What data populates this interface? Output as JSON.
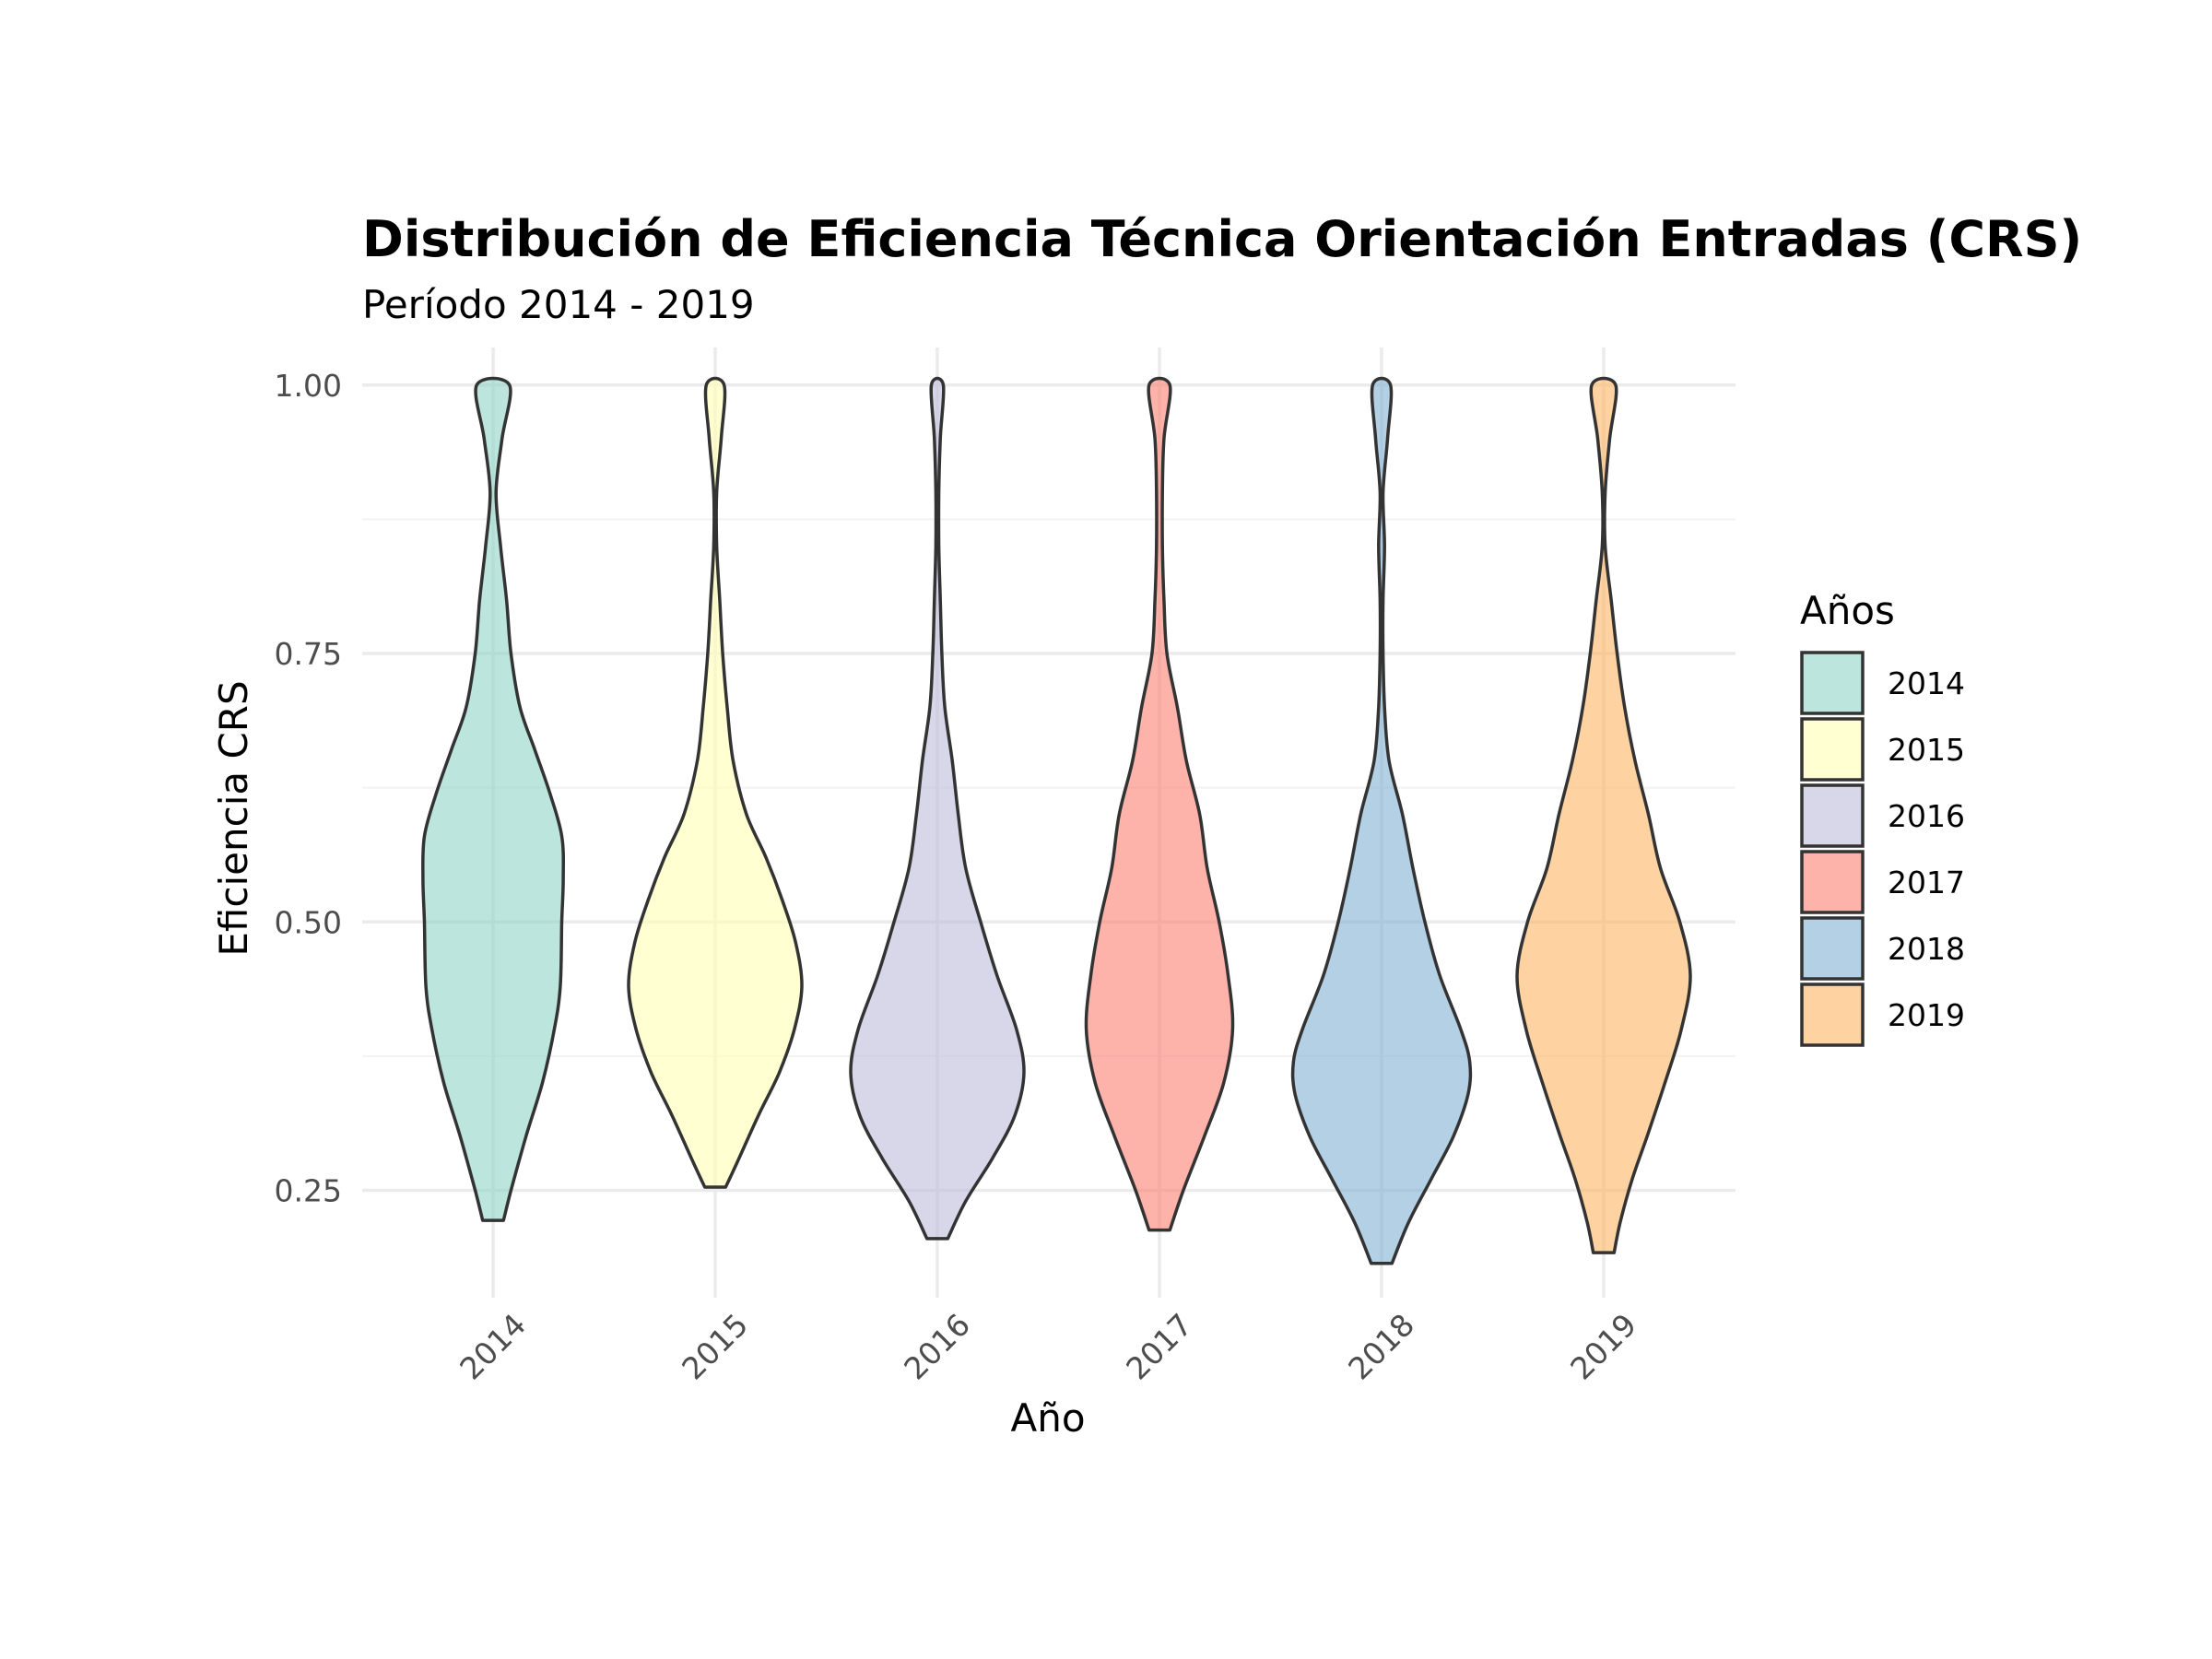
{
  "chart_data": {
    "type": "violin",
    "title": "Distribución de Eficiencia Técnica Orientación Entradas (CRS)",
    "subtitle": "Período 2014 - 2019",
    "xlabel": "Año",
    "ylabel": "Eficiencia CRS",
    "ylim": [
      0.15,
      1.035
    ],
    "yticks": [
      "0.25",
      "0.50",
      "0.75",
      "1.00"
    ],
    "ytick_values": [
      0.25,
      0.5,
      0.75,
      1.0
    ],
    "categories": [
      "2014",
      "2015",
      "2016",
      "2017",
      "2018",
      "2019"
    ],
    "legend": {
      "title": "Años",
      "position": "right"
    },
    "grid": true,
    "series": [
      {
        "name": "2014",
        "color": "#8DD3C7",
        "min": 0.222,
        "max": 1.0,
        "profile": [
          [
            0.222,
            0.07
          ],
          [
            0.25,
            0.12
          ],
          [
            0.3,
            0.22
          ],
          [
            0.35,
            0.33
          ],
          [
            0.4,
            0.41
          ],
          [
            0.44,
            0.45
          ],
          [
            0.5,
            0.46
          ],
          [
            0.54,
            0.47
          ],
          [
            0.58,
            0.46
          ],
          [
            0.62,
            0.38
          ],
          [
            0.66,
            0.28
          ],
          [
            0.7,
            0.18
          ],
          [
            0.75,
            0.12
          ],
          [
            0.8,
            0.09
          ],
          [
            0.85,
            0.05
          ],
          [
            0.9,
            0.02
          ],
          [
            0.95,
            0.06
          ],
          [
            1.0,
            0.11
          ]
        ]
      },
      {
        "name": "2015",
        "color": "#FFFFB3",
        "min": 0.253,
        "max": 1.0,
        "profile": [
          [
            0.253,
            0.07
          ],
          [
            0.28,
            0.16
          ],
          [
            0.32,
            0.29
          ],
          [
            0.36,
            0.43
          ],
          [
            0.4,
            0.53
          ],
          [
            0.44,
            0.58
          ],
          [
            0.48,
            0.54
          ],
          [
            0.52,
            0.45
          ],
          [
            0.56,
            0.34
          ],
          [
            0.6,
            0.21
          ],
          [
            0.65,
            0.12
          ],
          [
            0.7,
            0.08
          ],
          [
            0.75,
            0.05
          ],
          [
            0.8,
            0.03
          ],
          [
            0.85,
            0.01
          ],
          [
            0.9,
            0.01
          ],
          [
            0.95,
            0.04
          ],
          [
            1.0,
            0.06
          ]
        ]
      },
      {
        "name": "2016",
        "color": "#BEBADA",
        "min": 0.205,
        "max": 1.0,
        "profile": [
          [
            0.205,
            0.07
          ],
          [
            0.24,
            0.19
          ],
          [
            0.28,
            0.37
          ],
          [
            0.32,
            0.52
          ],
          [
            0.36,
            0.58
          ],
          [
            0.4,
            0.53
          ],
          [
            0.45,
            0.4
          ],
          [
            0.5,
            0.29
          ],
          [
            0.55,
            0.19
          ],
          [
            0.6,
            0.14
          ],
          [
            0.65,
            0.1
          ],
          [
            0.7,
            0.05
          ],
          [
            0.75,
            0.03
          ],
          [
            0.8,
            0.02
          ],
          [
            0.85,
            0.01
          ],
          [
            0.9,
            0.01
          ],
          [
            0.95,
            0.02
          ],
          [
            1.0,
            0.04
          ]
        ]
      },
      {
        "name": "2017",
        "color": "#FB8072",
        "min": 0.213,
        "max": 1.0,
        "profile": [
          [
            0.213,
            0.07
          ],
          [
            0.25,
            0.16
          ],
          [
            0.3,
            0.3
          ],
          [
            0.35,
            0.43
          ],
          [
            0.4,
            0.49
          ],
          [
            0.45,
            0.46
          ],
          [
            0.5,
            0.4
          ],
          [
            0.55,
            0.32
          ],
          [
            0.6,
            0.27
          ],
          [
            0.65,
            0.18
          ],
          [
            0.7,
            0.12
          ],
          [
            0.75,
            0.05
          ],
          [
            0.8,
            0.03
          ],
          [
            0.85,
            0.02
          ],
          [
            0.9,
            0.02
          ],
          [
            0.95,
            0.03
          ],
          [
            1.0,
            0.07
          ]
        ]
      },
      {
        "name": "2018",
        "color": "#80B1D3",
        "min": 0.182,
        "max": 1.0,
        "profile": [
          [
            0.182,
            0.07
          ],
          [
            0.22,
            0.18
          ],
          [
            0.26,
            0.33
          ],
          [
            0.3,
            0.48
          ],
          [
            0.34,
            0.58
          ],
          [
            0.37,
            0.59
          ],
          [
            0.4,
            0.53
          ],
          [
            0.45,
            0.39
          ],
          [
            0.5,
            0.29
          ],
          [
            0.55,
            0.21
          ],
          [
            0.6,
            0.14
          ],
          [
            0.65,
            0.05
          ],
          [
            0.7,
            0.02
          ],
          [
            0.75,
            0.01
          ],
          [
            0.8,
            0.01
          ],
          [
            0.85,
            0.02
          ],
          [
            0.9,
            0.01
          ],
          [
            0.95,
            0.04
          ],
          [
            1.0,
            0.06
          ]
        ]
      },
      {
        "name": "2019",
        "color": "#FDB462",
        "min": 0.192,
        "max": 1.0,
        "profile": [
          [
            0.192,
            0.07
          ],
          [
            0.22,
            0.11
          ],
          [
            0.26,
            0.19
          ],
          [
            0.3,
            0.29
          ],
          [
            0.35,
            0.41
          ],
          [
            0.4,
            0.52
          ],
          [
            0.45,
            0.58
          ],
          [
            0.5,
            0.51
          ],
          [
            0.55,
            0.38
          ],
          [
            0.6,
            0.3
          ],
          [
            0.65,
            0.21
          ],
          [
            0.7,
            0.14
          ],
          [
            0.75,
            0.09
          ],
          [
            0.8,
            0.05
          ],
          [
            0.85,
            0.01
          ],
          [
            0.9,
            0.01
          ],
          [
            0.95,
            0.04
          ],
          [
            1.0,
            0.08
          ]
        ]
      }
    ]
  }
}
